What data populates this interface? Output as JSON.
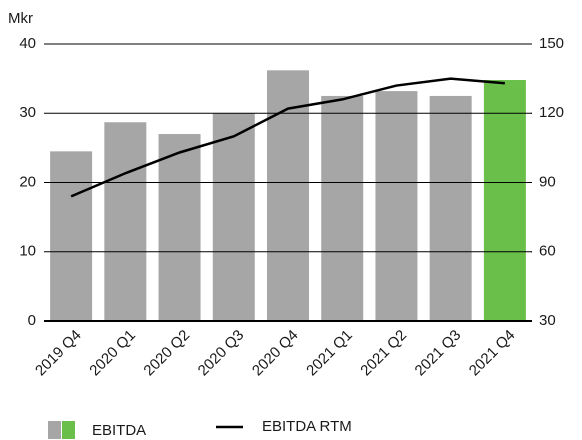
{
  "chart_data": {
    "type": "bar_line",
    "y_axis_label": "Mkr",
    "categories": [
      "2019 Q4",
      "2020 Q1",
      "2020 Q2",
      "2020 Q3",
      "2020 Q4",
      "2021 Q1",
      "2021 Q2",
      "2021 Q3",
      "2021 Q4"
    ],
    "series": [
      {
        "name": "EBITDA",
        "type": "bar",
        "colors": [
          "#a6a6a6",
          "#a6a6a6",
          "#a6a6a6",
          "#a6a6a6",
          "#a6a6a6",
          "#a6a6a6",
          "#a6a6a6",
          "#a6a6a6",
          "#6abf4b"
        ],
        "values": [
          24.5,
          28.7,
          27,
          30,
          36.2,
          32.5,
          33.2,
          32.5,
          34.8
        ]
      },
      {
        "name": "EBITDA RTM",
        "type": "line",
        "axis": "y2",
        "color": "#000000",
        "values": [
          84,
          94,
          103,
          110,
          122,
          126,
          132,
          135,
          133
        ]
      }
    ],
    "ylim": [
      0,
      40
    ],
    "yticks": [
      0,
      10,
      20,
      30,
      40
    ],
    "y2lim": [
      30,
      150
    ],
    "y2ticks": [
      30,
      60,
      90,
      120,
      150
    ],
    "grid": true
  }
}
